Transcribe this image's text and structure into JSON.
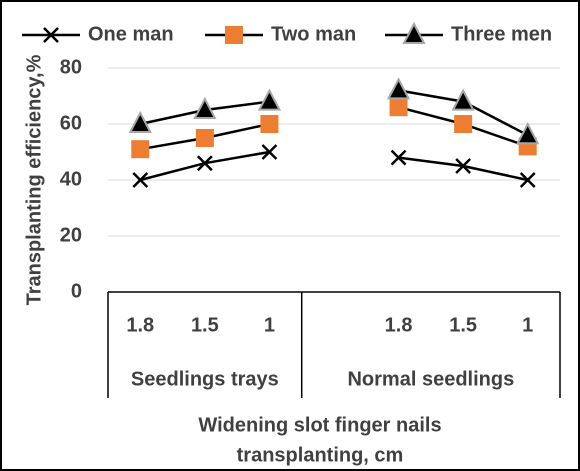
{
  "chart_data": {
    "type": "line",
    "categories": [
      "1.8",
      "1.5",
      "1",
      null,
      "1.8",
      "1.5",
      "1"
    ],
    "groups": [
      {
        "name": "Seedlings trays",
        "size": 3
      },
      {
        "name": "Normal seedlings",
        "size": 4
      }
    ],
    "series": [
      {
        "name": "One man",
        "color": "#000000",
        "marker": "x",
        "marker_color": "#000000",
        "values": [
          40,
          46,
          50,
          null,
          48,
          45,
          40
        ]
      },
      {
        "name": "Two man",
        "color": "#000000",
        "marker": "square",
        "marker_color": "#ed7d31",
        "values": [
          51,
          55,
          60,
          null,
          66,
          60,
          52
        ]
      },
      {
        "name": "Three men",
        "color": "#000000",
        "marker": "triangle",
        "marker_color": "#000000",
        "values": [
          60,
          65,
          68,
          null,
          72,
          68,
          56
        ]
      }
    ],
    "ylabel": "Transplanting efficiency,%",
    "xlabel": [
      "Widening slot finger nails",
      "transplanting,  cm"
    ],
    "ylim": [
      0,
      80
    ],
    "yticks": [
      0,
      20,
      40,
      60,
      80
    ],
    "grid": true,
    "legend": "top"
  }
}
